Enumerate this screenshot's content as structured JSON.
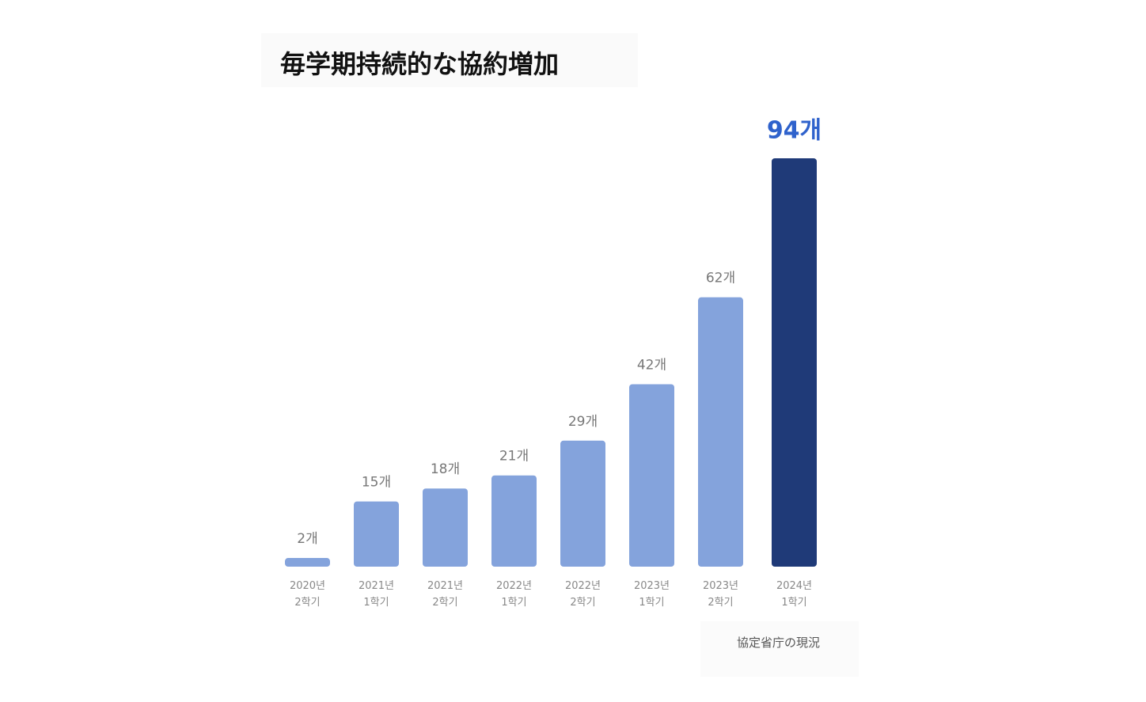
{
  "chart_data": {
    "type": "bar",
    "title": "毎学期持続的な協約増加",
    "source": "協定省庁の現況",
    "categories": [
      "2020년\n2학기",
      "2021년\n1학기",
      "2021년\n2학기",
      "2022년\n1학기",
      "2022년\n2학기",
      "2023년\n1학기",
      "2023년\n2학기",
      "2024년\n1학기"
    ],
    "values": [
      2,
      15,
      18,
      21,
      29,
      42,
      62,
      94
    ],
    "value_labels": [
      "2개",
      "15개",
      "18개",
      "21개",
      "29개",
      "42개",
      "62개",
      "94개"
    ],
    "colors": [
      "#84a3dc",
      "#84a3dc",
      "#84a3dc",
      "#84a3dc",
      "#84a3dc",
      "#84a3dc",
      "#84a3dc",
      "#1f3a78"
    ]
  }
}
